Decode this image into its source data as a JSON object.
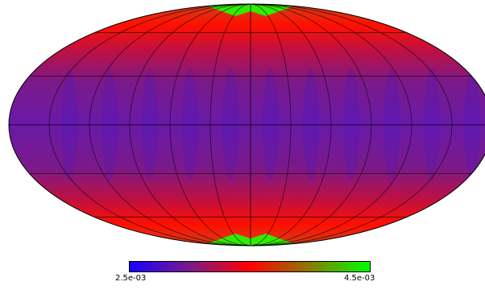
{
  "map": {
    "projection": "mollweide",
    "graticule": true
  },
  "colorbar": {
    "min_label": "2.5e-03",
    "max_label": "4.5e-03",
    "colors": [
      "#1a00ff",
      "#7a1a8a",
      "#ff0000",
      "#8a7a00",
      "#00ff00"
    ]
  }
}
